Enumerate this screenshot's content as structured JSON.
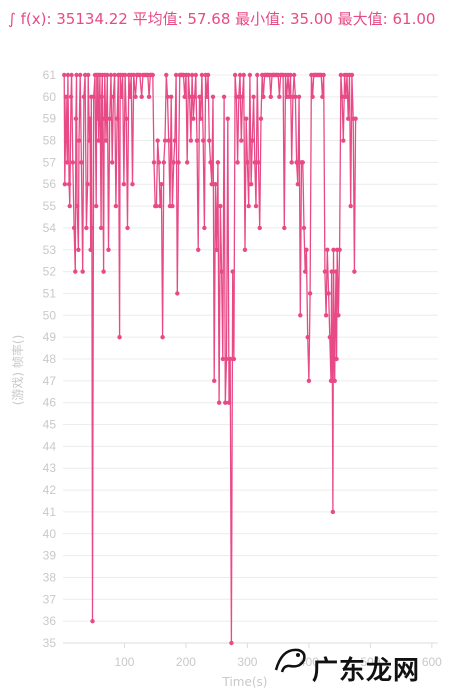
{
  "stats_text": "∫ f(x): 35134.22 平均值: 57.68 最小值: 35.00 最大值: 61.00",
  "watermark_text": "广东龙网",
  "colors": {
    "series": "#e84a86",
    "grid": "#ececec",
    "text": "#c9c9c9"
  },
  "chart_data": {
    "type": "line",
    "xlabel": "Time(s)",
    "ylabel": "(游戏) 帧率()",
    "xlim": [
      0,
      610
    ],
    "ylim": [
      35,
      61
    ],
    "x_ticks": [
      100,
      200,
      300,
      400,
      500,
      600
    ],
    "y_ticks": [
      35,
      36,
      37,
      38,
      39,
      40,
      41,
      42,
      43,
      44,
      45,
      46,
      47,
      48,
      49,
      50,
      51,
      52,
      53,
      54,
      55,
      56,
      57,
      58,
      59,
      60,
      61
    ],
    "grid": "horizontal",
    "markers": true,
    "series": [
      {
        "values": [
          [
            2,
            61
          ],
          [
            3,
            56
          ],
          [
            5,
            60
          ],
          [
            6,
            58
          ],
          [
            7,
            57
          ],
          [
            8,
            61
          ],
          [
            10,
            56
          ],
          [
            11,
            55
          ],
          [
            13,
            60
          ],
          [
            14,
            61
          ],
          [
            16,
            57
          ],
          [
            18,
            54
          ],
          [
            20,
            52
          ],
          [
            21,
            59
          ],
          [
            22,
            61
          ],
          [
            23,
            55
          ],
          [
            25,
            53
          ],
          [
            26,
            58
          ],
          [
            28,
            61
          ],
          [
            30,
            57
          ],
          [
            32,
            52
          ],
          [
            34,
            60
          ],
          [
            36,
            61
          ],
          [
            38,
            54
          ],
          [
            40,
            56
          ],
          [
            41,
            61
          ],
          [
            43,
            58
          ],
          [
            44,
            59
          ],
          [
            45,
            53
          ],
          [
            46,
            60
          ],
          [
            47,
            54
          ],
          [
            48,
            36
          ],
          [
            50,
            60
          ],
          [
            52,
            61
          ],
          [
            54,
            55
          ],
          [
            55,
            61
          ],
          [
            56,
            59
          ],
          [
            57,
            61
          ],
          [
            58,
            58
          ],
          [
            60,
            61
          ],
          [
            62,
            54
          ],
          [
            63,
            60
          ],
          [
            64,
            61
          ],
          [
            66,
            52
          ],
          [
            67,
            59
          ],
          [
            68,
            61
          ],
          [
            70,
            58
          ],
          [
            72,
            61
          ],
          [
            74,
            53
          ],
          [
            76,
            59
          ],
          [
            78,
            61
          ],
          [
            80,
            57
          ],
          [
            82,
            60
          ],
          [
            84,
            61
          ],
          [
            86,
            55
          ],
          [
            88,
            59
          ],
          [
            90,
            61
          ],
          [
            92,
            49
          ],
          [
            93,
            61
          ],
          [
            95,
            60
          ],
          [
            97,
            61
          ],
          [
            99,
            56
          ],
          [
            101,
            61
          ],
          [
            103,
            59
          ],
          [
            105,
            54
          ],
          [
            107,
            61
          ],
          [
            109,
            60
          ],
          [
            111,
            61
          ],
          [
            113,
            56
          ],
          [
            115,
            61
          ],
          [
            118,
            60
          ],
          [
            120,
            61
          ],
          [
            122,
            61
          ],
          [
            125,
            61
          ],
          [
            128,
            60
          ],
          [
            130,
            61
          ],
          [
            133,
            61
          ],
          [
            136,
            61
          ],
          [
            138,
            61
          ],
          [
            140,
            60
          ],
          [
            142,
            61
          ],
          [
            144,
            61
          ],
          [
            146,
            61
          ],
          [
            148,
            57
          ],
          [
            150,
            55
          ],
          [
            152,
            55
          ],
          [
            154,
            58
          ],
          [
            156,
            57
          ],
          [
            158,
            55
          ],
          [
            160,
            56
          ],
          [
            162,
            49
          ],
          [
            164,
            57
          ],
          [
            166,
            58
          ],
          [
            168,
            61
          ],
          [
            170,
            60
          ],
          [
            172,
            58
          ],
          [
            174,
            55
          ],
          [
            176,
            60
          ],
          [
            178,
            55
          ],
          [
            180,
            57
          ],
          [
            182,
            58
          ],
          [
            184,
            61
          ],
          [
            186,
            51
          ],
          [
            188,
            57
          ],
          [
            190,
            61
          ],
          [
            192,
            61
          ],
          [
            194,
            61
          ],
          [
            196,
            61
          ],
          [
            198,
            60
          ],
          [
            200,
            61
          ],
          [
            202,
            57
          ],
          [
            204,
            61
          ],
          [
            206,
            60
          ],
          [
            208,
            58
          ],
          [
            210,
            61
          ],
          [
            212,
            59
          ],
          [
            214,
            60
          ],
          [
            216,
            61
          ],
          [
            218,
            58
          ],
          [
            220,
            53
          ],
          [
            222,
            60
          ],
          [
            224,
            59
          ],
          [
            226,
            61
          ],
          [
            228,
            58
          ],
          [
            230,
            54
          ],
          [
            232,
            61
          ],
          [
            234,
            60
          ],
          [
            236,
            61
          ],
          [
            238,
            58
          ],
          [
            240,
            57
          ],
          [
            242,
            56
          ],
          [
            244,
            60
          ],
          [
            246,
            47
          ],
          [
            248,
            56
          ],
          [
            250,
            53
          ],
          [
            252,
            57
          ],
          [
            254,
            46
          ],
          [
            256,
            55
          ],
          [
            258,
            52
          ],
          [
            260,
            48
          ],
          [
            262,
            60
          ],
          [
            264,
            46
          ],
          [
            266,
            48
          ],
          [
            268,
            59
          ],
          [
            270,
            46
          ],
          [
            272,
            48
          ],
          [
            274,
            35
          ],
          [
            276,
            52
          ],
          [
            278,
            48
          ],
          [
            280,
            61
          ],
          [
            282,
            60
          ],
          [
            284,
            57
          ],
          [
            286,
            60
          ],
          [
            288,
            61
          ],
          [
            290,
            58
          ],
          [
            292,
            60
          ],
          [
            294,
            61
          ],
          [
            296,
            53
          ],
          [
            298,
            59
          ],
          [
            300,
            57
          ],
          [
            302,
            55
          ],
          [
            304,
            61
          ],
          [
            306,
            56
          ],
          [
            308,
            58
          ],
          [
            310,
            60
          ],
          [
            312,
            57
          ],
          [
            314,
            55
          ],
          [
            316,
            61
          ],
          [
            318,
            57
          ],
          [
            320,
            54
          ],
          [
            322,
            59
          ],
          [
            324,
            61
          ],
          [
            326,
            60
          ],
          [
            328,
            61
          ],
          [
            330,
            61
          ],
          [
            332,
            61
          ],
          [
            334,
            61
          ],
          [
            336,
            61
          ],
          [
            338,
            60
          ],
          [
            340,
            61
          ],
          [
            342,
            61
          ],
          [
            344,
            61
          ],
          [
            346,
            61
          ],
          [
            348,
            61
          ],
          [
            350,
            61
          ],
          [
            352,
            60
          ],
          [
            354,
            61
          ],
          [
            356,
            61
          ],
          [
            358,
            61
          ],
          [
            360,
            54
          ],
          [
            362,
            61
          ],
          [
            364,
            60
          ],
          [
            366,
            61
          ],
          [
            368,
            60
          ],
          [
            370,
            61
          ],
          [
            372,
            57
          ],
          [
            374,
            60
          ],
          [
            376,
            61
          ],
          [
            378,
            60
          ],
          [
            380,
            57
          ],
          [
            382,
            56
          ],
          [
            384,
            60
          ],
          [
            386,
            50
          ],
          [
            388,
            57
          ],
          [
            390,
            57
          ],
          [
            392,
            54
          ],
          [
            394,
            52
          ],
          [
            396,
            53
          ],
          [
            398,
            49
          ],
          [
            400,
            47
          ],
          [
            402,
            51
          ],
          [
            404,
            61
          ],
          [
            406,
            60
          ],
          [
            408,
            61
          ],
          [
            410,
            61
          ],
          [
            412,
            61
          ],
          [
            414,
            61
          ],
          [
            416,
            61
          ],
          [
            418,
            61
          ],
          [
            420,
            61
          ],
          [
            422,
            60
          ],
          [
            424,
            61
          ],
          [
            426,
            52
          ],
          [
            428,
            50
          ],
          [
            430,
            53
          ],
          [
            432,
            51
          ],
          [
            434,
            49
          ],
          [
            436,
            47
          ],
          [
            437,
            52
          ],
          [
            438,
            48
          ],
          [
            439,
            41
          ],
          [
            440,
            53
          ],
          [
            441,
            49
          ],
          [
            442,
            47
          ],
          [
            443,
            50
          ],
          [
            444,
            52
          ],
          [
            445,
            48
          ],
          [
            446,
            53
          ],
          [
            448,
            50
          ],
          [
            450,
            53
          ],
          [
            452,
            61
          ],
          [
            454,
            60
          ],
          [
            456,
            58
          ],
          [
            458,
            61
          ],
          [
            460,
            60
          ],
          [
            462,
            61
          ],
          [
            464,
            59
          ],
          [
            466,
            61
          ],
          [
            468,
            55
          ],
          [
            470,
            61
          ],
          [
            472,
            59
          ],
          [
            474,
            52
          ],
          [
            476,
            59
          ]
        ]
      }
    ]
  }
}
